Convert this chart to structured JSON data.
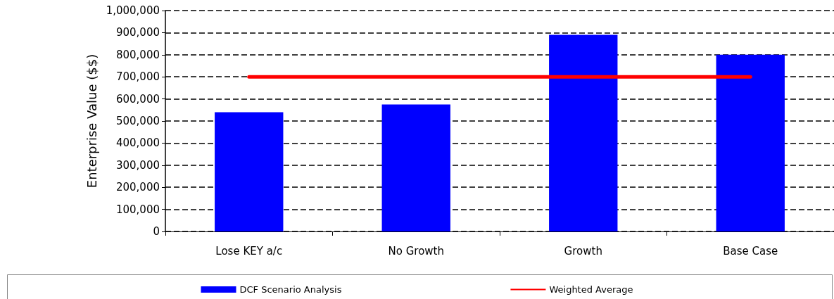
{
  "chart_data": {
    "type": "bar",
    "ylabel": "Enterprise Value ($$)",
    "categories": [
      "Lose KEY a/c",
      "No Growth",
      "Growth",
      "Base Case"
    ],
    "series": [
      {
        "name": "DCF Scenario Analysis",
        "color": "#0000ff",
        "values": [
          540000,
          575000,
          890000,
          800000
        ]
      },
      {
        "name": "Weighted Average",
        "type": "line",
        "color": "#ff0000",
        "values": [
          700000,
          700000,
          700000,
          700000
        ],
        "marker": "none"
      }
    ],
    "ylim": [
      0,
      1000000
    ],
    "yticks": [
      0,
      {
        "value": 100000,
        "label": "100,000"
      },
      {
        "value": 200000,
        "label": "200,000"
      },
      {
        "value": 300000,
        "label": "300,000"
      },
      {
        "value": 400000,
        "label": "400,000"
      },
      {
        "value": 500000,
        "label": "500,000"
      },
      {
        "value": 600000,
        "label": "600,000"
      },
      {
        "value": 700000,
        "label": "700,000"
      },
      {
        "value": 800000,
        "label": "800,000"
      },
      {
        "value": 900000,
        "label": "900,000"
      },
      {
        "value": 1000000,
        "label": "1,000,000"
      }
    ],
    "grid": "y",
    "legend": "bottom"
  }
}
